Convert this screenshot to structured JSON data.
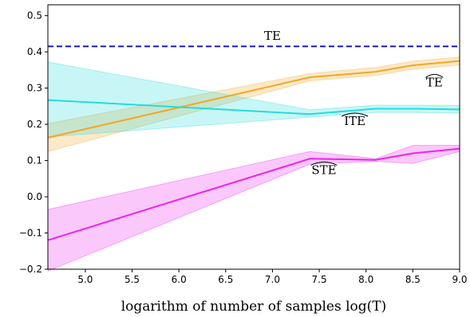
{
  "chart_data": {
    "type": "line",
    "title": "",
    "xlabel": "logarithm of number of samples log(T)",
    "ylabel": "",
    "xlim": [
      4.6,
      9.0
    ],
    "ylim": [
      -0.2,
      0.53
    ],
    "xticks": [
      5.0,
      5.5,
      6.0,
      6.5,
      7.0,
      7.5,
      8.0,
      8.5,
      9.0
    ],
    "yticks": [
      -0.2,
      -0.1,
      0.0,
      0.1,
      0.2,
      0.3,
      0.4,
      0.5
    ],
    "xtick_labels": [
      "5.0",
      "5.5",
      "6.0",
      "6.5",
      "7.0",
      "7.5",
      "8.0",
      "8.5",
      "9.0"
    ],
    "ytick_labels": [
      "−0.2",
      "−0.1",
      "0.0",
      "0.1",
      "0.2",
      "0.3",
      "0.4",
      "0.5"
    ],
    "grid": false,
    "reference_line": {
      "label": "TE",
      "y": 0.415,
      "color": "#1a1acc",
      "style": "dashed"
    },
    "series": [
      {
        "name": "TE",
        "color": "#f5a623",
        "x": [
          4.6,
          7.4,
          8.1,
          8.5,
          9.0
        ],
        "values": [
          0.163,
          0.33,
          0.345,
          0.363,
          0.375
        ],
        "lower": [
          0.125,
          0.32,
          0.335,
          0.352,
          0.364
        ],
        "upper": [
          0.202,
          0.34,
          0.357,
          0.374,
          0.386
        ]
      },
      {
        "name": "ITE",
        "color": "#22dddd",
        "x": [
          4.6,
          7.4,
          8.1,
          8.5,
          9.0
        ],
        "values": [
          0.267,
          0.228,
          0.243,
          0.243,
          0.241
        ],
        "lower": [
          0.165,
          0.22,
          0.233,
          0.233,
          0.231
        ],
        "upper": [
          0.372,
          0.24,
          0.253,
          0.253,
          0.252
        ]
      },
      {
        "name": "STE",
        "color": "#ee22ee",
        "x": [
          4.6,
          7.4,
          8.1,
          8.5,
          9.0
        ],
        "values": [
          -0.12,
          0.105,
          0.102,
          0.12,
          0.133
        ],
        "lower": [
          -0.205,
          0.09,
          0.098,
          0.092,
          0.125
        ],
        "upper": [
          -0.035,
          0.125,
          0.105,
          0.142,
          0.142
        ]
      }
    ],
    "annotations": [
      {
        "text": "TE",
        "x": 7.0,
        "y": 0.433,
        "hat": false
      },
      {
        "text": "TE",
        "x": 8.73,
        "y": 0.305,
        "hat": true
      },
      {
        "text": "ITE",
        "x": 7.88,
        "y": 0.198,
        "hat": true
      },
      {
        "text": "STE",
        "x": 7.55,
        "y": 0.063,
        "hat": true
      }
    ]
  }
}
